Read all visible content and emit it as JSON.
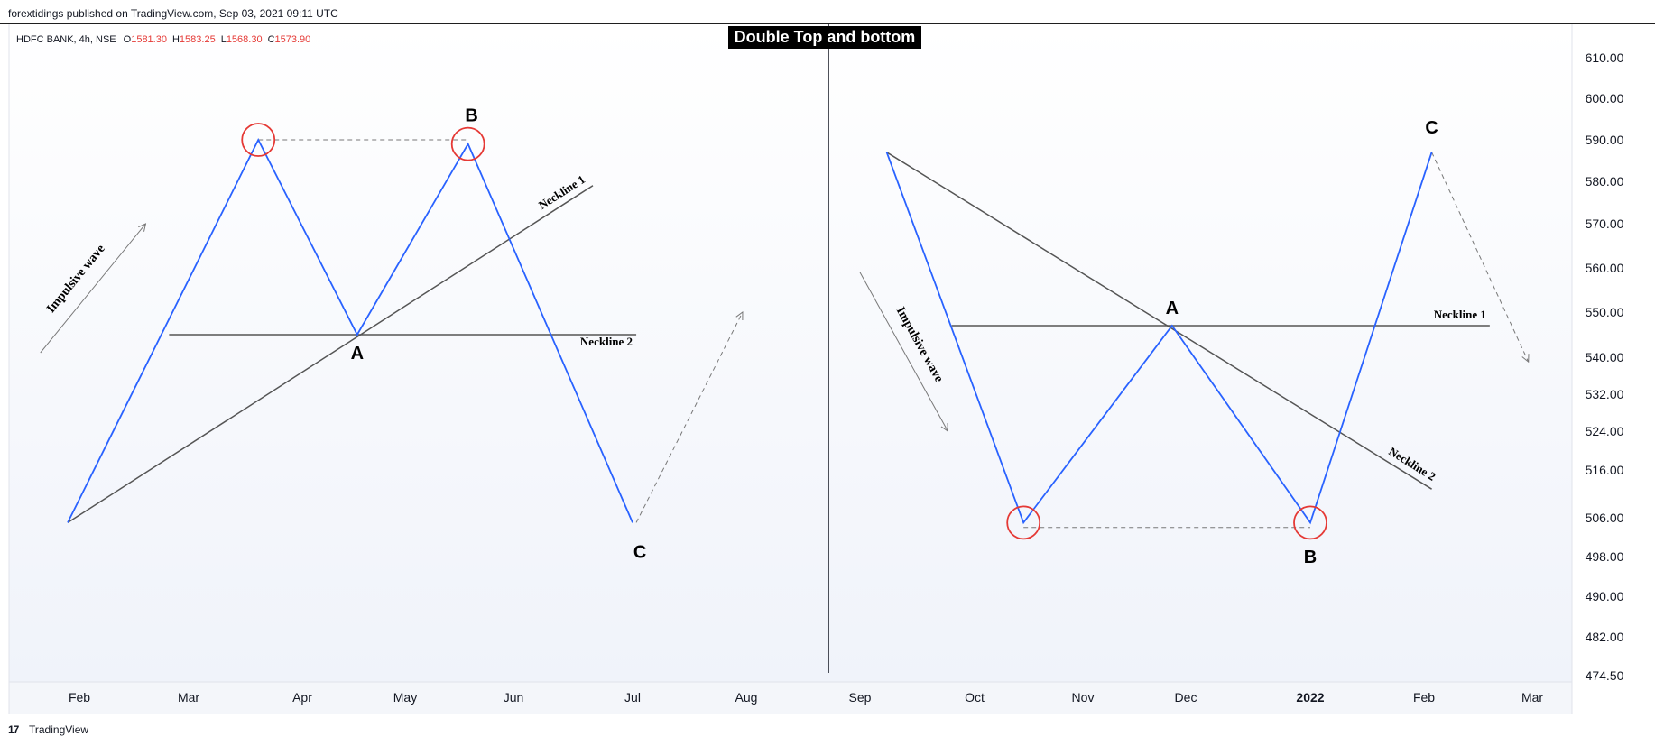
{
  "header": {
    "published_line": "forextidings published on TradingView.com, Sep 03, 2021 09:11 UTC"
  },
  "footer": {
    "brand_logo": "17",
    "brand_name": "TradingView"
  },
  "chart_data": {
    "type": "line",
    "title": "Double Top and bottom",
    "legend": {
      "symbol": "HDFC BANK, 4h, NSE",
      "ohlc": [
        {
          "label": "O",
          "value": "1581.30"
        },
        {
          "label": "H",
          "value": "1583.25"
        },
        {
          "label": "L",
          "value": "1568.30"
        },
        {
          "label": "C",
          "value": "1573.90"
        }
      ]
    },
    "x_ticks": [
      {
        "label": "Feb",
        "date": "2021-02-01",
        "bold": false
      },
      {
        "label": "Mar",
        "date": "2021-03-01",
        "bold": false
      },
      {
        "label": "Apr",
        "date": "2021-04-01",
        "bold": false
      },
      {
        "label": "May",
        "date": "2021-05-01",
        "bold": false
      },
      {
        "label": "Jun",
        "date": "2021-06-01",
        "bold": false
      },
      {
        "label": "Jul",
        "date": "2021-07-01",
        "bold": false
      },
      {
        "label": "Aug",
        "date": "2021-08-01",
        "bold": false
      },
      {
        "label": "Sep",
        "date": "2021-09-01",
        "bold": false
      },
      {
        "label": "Oct",
        "date": "2021-10-01",
        "bold": false
      },
      {
        "label": "Nov",
        "date": "2021-11-01",
        "bold": false
      },
      {
        "label": "Dec",
        "date": "2021-12-01",
        "bold": false
      },
      {
        "label": "2022",
        "date": "2022-01-01",
        "bold": true
      },
      {
        "label": "Feb",
        "date": "2022-02-01",
        "bold": false
      },
      {
        "label": "Mar",
        "date": "2022-03-01",
        "bold": false
      }
    ],
    "y_ticks": [
      "610.00",
      "600.00",
      "590.00",
      "580.00",
      "570.00",
      "560.00",
      "550.00",
      "540.00",
      "532.00",
      "524.00",
      "516.00",
      "506.00",
      "498.00",
      "490.00",
      "482.00",
      "474.50"
    ],
    "colors": {
      "wave": "#2962ff",
      "neckline": "#555555",
      "marker": "#e53935",
      "dashed": "#787878",
      "legend_value": "#e53935",
      "bg_top": "#ffffff",
      "bg_bottom": "#f0f3fa"
    },
    "panels": [
      {
        "name": "double-top",
        "wave": [
          {
            "date": "2021-01-29",
            "price": 505
          },
          {
            "date": "2021-03-20",
            "price": 590
          },
          {
            "date": "2021-04-17",
            "price": 545
          },
          {
            "date": "2021-05-19",
            "price": 589
          },
          {
            "date": "2021-07-01",
            "price": 505
          }
        ],
        "necklines": [
          {
            "label": "Neckline 1",
            "from": {
              "date": "2021-01-29",
              "price": 505
            },
            "to": {
              "date": "2021-06-21",
              "price": 579
            },
            "label_pos": "end",
            "label_side": "above"
          },
          {
            "label": "Neckline 2",
            "from": {
              "date": "2021-02-24",
              "price": 545
            },
            "to": {
              "date": "2021-07-02",
              "price": 545
            },
            "label_pos": "end",
            "label_side": "below"
          }
        ],
        "markers": [
          {
            "date": "2021-03-20",
            "price": 590
          },
          {
            "date": "2021-05-19",
            "price": 589
          }
        ],
        "dashed_lines": [
          {
            "from": {
              "date": "2021-03-20",
              "price": 590
            },
            "to": {
              "date": "2021-05-19",
              "price": 590
            },
            "arrow": false
          },
          {
            "from": {
              "date": "2021-07-02",
              "price": 505
            },
            "to": {
              "date": "2021-07-31",
              "price": 550
            },
            "arrow": true
          }
        ],
        "arrows": [
          {
            "label": "Impulsive wave",
            "from": {
              "date": "2021-01-22",
              "price": 541
            },
            "to": {
              "date": "2021-02-18",
              "price": 570
            }
          }
        ],
        "labels": [
          {
            "text": "A",
            "date": "2021-04-17",
            "price": 541
          },
          {
            "text": "B",
            "date": "2021-05-20",
            "price": 596
          },
          {
            "text": "C",
            "date": "2021-07-03",
            "price": 499
          }
        ]
      },
      {
        "name": "double-bottom",
        "wave": [
          {
            "date": "2021-09-08",
            "price": 587
          },
          {
            "date": "2021-10-15",
            "price": 505
          },
          {
            "date": "2021-11-27",
            "price": 547
          },
          {
            "date": "2022-01-01",
            "price": 505
          },
          {
            "date": "2022-02-03",
            "price": 587
          }
        ],
        "necklines": [
          {
            "label": "Neckline 1",
            "from": {
              "date": "2021-09-25",
              "price": 547
            },
            "to": {
              "date": "2022-02-18",
              "price": 547
            },
            "label_pos": "end",
            "label_side": "above"
          },
          {
            "label": "Neckline 2",
            "from": {
              "date": "2021-09-08",
              "price": 587
            },
            "to": {
              "date": "2022-02-03",
              "price": 512
            },
            "label_pos": "end",
            "label_side": "above"
          }
        ],
        "markers": [
          {
            "date": "2021-10-15",
            "price": 505
          },
          {
            "date": "2022-01-01",
            "price": 505
          }
        ],
        "dashed_lines": [
          {
            "from": {
              "date": "2021-10-15",
              "price": 504
            },
            "to": {
              "date": "2022-01-01",
              "price": 504
            },
            "arrow": false
          },
          {
            "from": {
              "date": "2022-02-03",
              "price": 587
            },
            "to": {
              "date": "2022-02-28",
              "price": 539
            },
            "arrow": true
          }
        ],
        "arrows": [
          {
            "label": "Impulsive wave",
            "from": {
              "date": "2021-09-01",
              "price": 559
            },
            "to": {
              "date": "2021-09-24",
              "price": 524
            }
          }
        ],
        "labels": [
          {
            "text": "A",
            "date": "2021-11-27",
            "price": 551
          },
          {
            "text": "B",
            "date": "2022-01-01",
            "price": 498
          },
          {
            "text": "C",
            "date": "2022-02-03",
            "price": 593
          }
        ]
      }
    ]
  }
}
